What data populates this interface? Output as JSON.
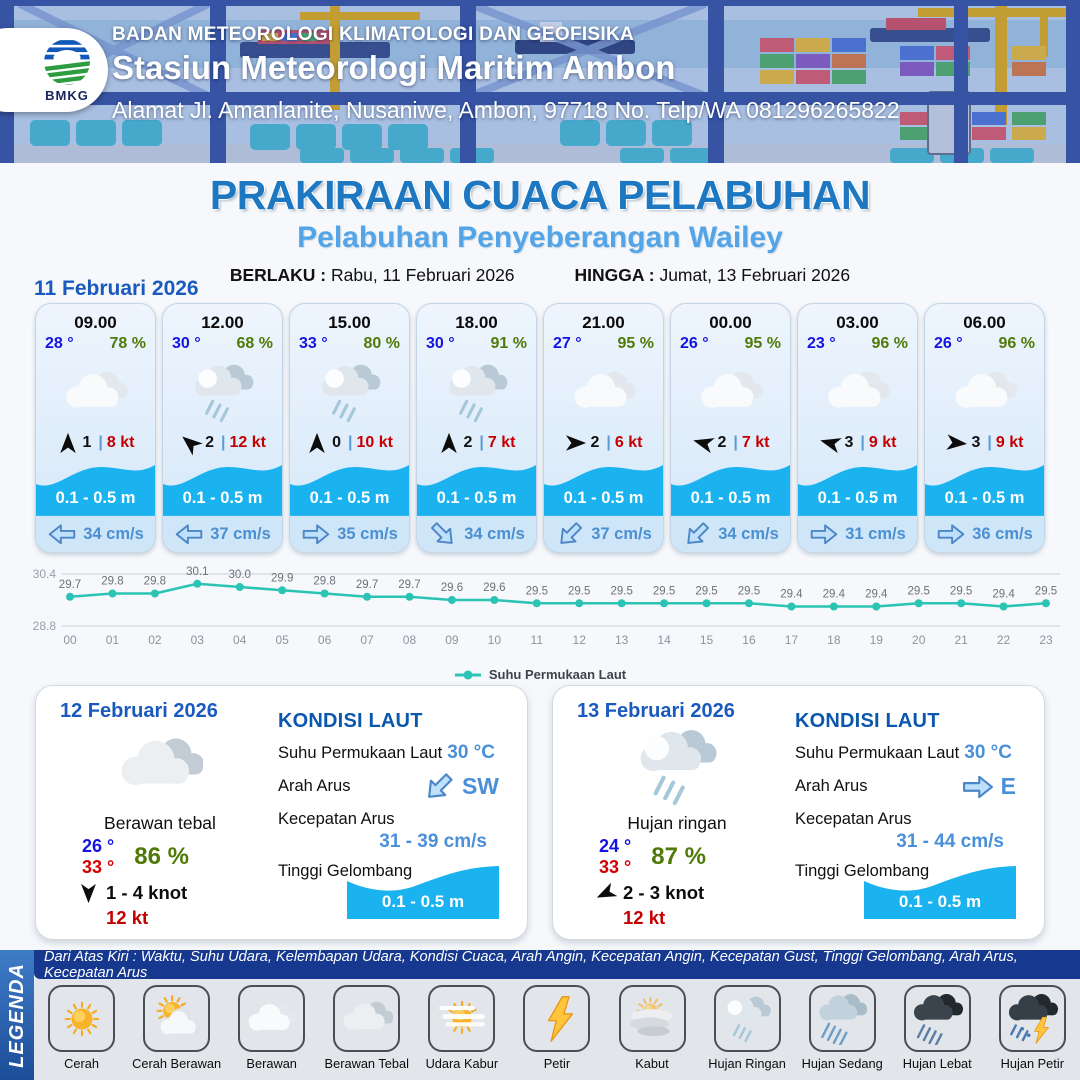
{
  "header": {
    "agency": "BADAN METEOROLOGI KLIMATOLOGI DAN GEOFISIKA",
    "station": "Stasiun Meteorologi Maritim Ambon",
    "address": "Alamat Jl. Amanlanite, Nusaniwe, Ambon, 97718   No. Telp/WA  081296265822",
    "logo_text": "BMKG"
  },
  "title": {
    "main": "PRAKIRAAN CUACA PELABUHAN",
    "subtitle": "Pelabuhan Penyeberangan Wailey",
    "valid_from_label": "BERLAKU :",
    "valid_from": "Rabu, 11 Februari 2026",
    "valid_to_label": "HINGGA :",
    "valid_to": "Jumat, 13 Februari 2026"
  },
  "forecast_day_label": "11 Februari 2026",
  "hourly": [
    {
      "time": "09.00",
      "temp": "28 °",
      "humidity": "78 %",
      "icon": "berawan",
      "wind_dir_deg": 0,
      "wind_speed": "1",
      "gust": "8 kt",
      "wave": "0.1 - 0.5 m",
      "current_dir_deg": 180,
      "current": "34 cm/s"
    },
    {
      "time": "12.00",
      "temp": "30 °",
      "humidity": "68 %",
      "icon": "hujan-ringan",
      "wind_dir_deg": -50,
      "wind_speed": "2",
      "gust": "12 kt",
      "wave": "0.1 - 0.5 m",
      "current_dir_deg": 180,
      "current": "37 cm/s"
    },
    {
      "time": "15.00",
      "temp": "33 °",
      "humidity": "80 %",
      "icon": "hujan-ringan",
      "wind_dir_deg": 0,
      "wind_speed": "0",
      "gust": "10 kt",
      "wave": "0.1 - 0.5 m",
      "current_dir_deg": 0,
      "current": "35 cm/s"
    },
    {
      "time": "18.00",
      "temp": "30 °",
      "humidity": "91 %",
      "icon": "hujan-ringan",
      "wind_dir_deg": 0,
      "wind_speed": "2",
      "gust": "7 kt",
      "wave": "0.1 - 0.5 m",
      "current_dir_deg": 45,
      "current": "34 cm/s"
    },
    {
      "time": "21.00",
      "temp": "27 °",
      "humidity": "95 %",
      "icon": "berawan",
      "wind_dir_deg": 90,
      "wind_speed": "2",
      "gust": "6 kt",
      "wave": "0.1 - 0.5 m",
      "current_dir_deg": 135,
      "current": "37 cm/s"
    },
    {
      "time": "00.00",
      "temp": "26 °",
      "humidity": "95 %",
      "icon": "berawan",
      "wind_dir_deg": -75,
      "wind_speed": "2",
      "gust": "7 kt",
      "wave": "0.1 - 0.5 m",
      "current_dir_deg": 135,
      "current": "34 cm/s"
    },
    {
      "time": "03.00",
      "temp": "23 °",
      "humidity": "96 %",
      "icon": "berawan",
      "wind_dir_deg": -75,
      "wind_speed": "3",
      "gust": "9 kt",
      "wave": "0.1 - 0.5 m",
      "current_dir_deg": 0,
      "current": "31 cm/s"
    },
    {
      "time": "06.00",
      "temp": "26 °",
      "humidity": "96 %",
      "icon": "berawan",
      "wind_dir_deg": 95,
      "wind_speed": "3",
      "gust": "9 kt",
      "wave": "0.1 - 0.5 m",
      "current_dir_deg": 0,
      "current": "36 cm/s"
    }
  ],
  "chart_data": {
    "type": "line",
    "series_label": "Suhu Permukaan Laut",
    "x": [
      "00",
      "01",
      "02",
      "03",
      "04",
      "05",
      "06",
      "07",
      "08",
      "09",
      "10",
      "11",
      "12",
      "13",
      "14",
      "15",
      "16",
      "17",
      "18",
      "19",
      "20",
      "21",
      "22",
      "23"
    ],
    "values": [
      29.7,
      29.8,
      29.8,
      30.1,
      30.0,
      29.9,
      29.8,
      29.7,
      29.7,
      29.6,
      29.6,
      29.5,
      29.5,
      29.5,
      29.5,
      29.5,
      29.5,
      29.4,
      29.4,
      29.4,
      29.5,
      29.5,
      29.4,
      29.5
    ],
    "ylim": [
      28.8,
      30.4
    ],
    "yticks": [
      "30.4",
      "28.8"
    ],
    "line_color": "#2bc4b4",
    "grid": true,
    "legend_position": "bottom"
  },
  "daily": [
    {
      "date": "12 Februari 2026",
      "icon": "berawan-tebal",
      "condition": "Berawan tebal",
      "temp_min": "26 °",
      "temp_max": "33 °",
      "humidity": "86 %",
      "wind_dir_deg": 180,
      "wind_range": "1  - 4 knot",
      "gust": "12 kt",
      "sea": {
        "heading": "KONDISI LAUT",
        "sst_label": "Suhu Permukaan Laut",
        "sst": "30 °C",
        "dir_label": "Arah Arus",
        "dir_deg": 135,
        "dir": "SW",
        "speed_label": "Kecepatan Arus",
        "speed": "31 - 39 cm/s",
        "wave_label": "Tinggi Gelombang",
        "wave": "0.1 - 0.5 m"
      }
    },
    {
      "date": "13 Februari 2026",
      "icon": "hujan-ringan",
      "condition": "Hujan ringan",
      "temp_min": "24 °",
      "temp_max": "33 °",
      "humidity": "87 %",
      "wind_dir_deg": -115,
      "wind_range": "2  - 3 knot",
      "gust": "12 kt",
      "sea": {
        "heading": "KONDISI LAUT",
        "sst_label": "Suhu Permukaan Laut",
        "sst": "30 °C",
        "dir_label": "Arah Arus",
        "dir_deg": 0,
        "dir": "E",
        "speed_label": "Kecepatan Arus",
        "speed": "31 - 44 cm/s",
        "wave_label": "Tinggi Gelombang",
        "wave": "0.1 - 0.5 m"
      }
    }
  ],
  "legend": {
    "bar_label": "LEGENDA",
    "note": "Dari Atas Kiri : Waktu, Suhu Udara, Kelembapan Udara, Kondisi Cuaca, Arah Angin, Kecepatan Angin, Kecepatan Gust, Tinggi Gelombang, Arah Arus, Kecepatan Arus",
    "items": [
      {
        "icon": "cerah",
        "label": "Cerah"
      },
      {
        "icon": "cerah-berawan",
        "label": "Cerah Berawan"
      },
      {
        "icon": "berawan",
        "label": "Berawan"
      },
      {
        "icon": "berawan-tebal",
        "label": "Berawan Tebal"
      },
      {
        "icon": "udara-kabur",
        "label": "Udara Kabur"
      },
      {
        "icon": "petir",
        "label": "Petir"
      },
      {
        "icon": "kabut",
        "label": "Kabut"
      },
      {
        "icon": "hujan-ringan",
        "label": "Hujan Ringan"
      },
      {
        "icon": "hujan-sedang",
        "label": "Hujan Sedang"
      },
      {
        "icon": "hujan-lebat",
        "label": "Hujan Lebat"
      },
      {
        "icon": "hujan-petir",
        "label": "Hujan Petir"
      }
    ]
  },
  "colors": {
    "accent_blue": "#1e78c1",
    "subtitle_blue": "#54a5e8",
    "date_blue": "#1a5abf",
    "temp_blue": "#1414e0",
    "humidity_green": "#4f7a07",
    "gust_red": "#c40000",
    "wave_cyan": "#1ab2ef",
    "current_blue": "#4a90d2",
    "chart_teal": "#2bc4b4",
    "legend_navy": "#16388f"
  }
}
